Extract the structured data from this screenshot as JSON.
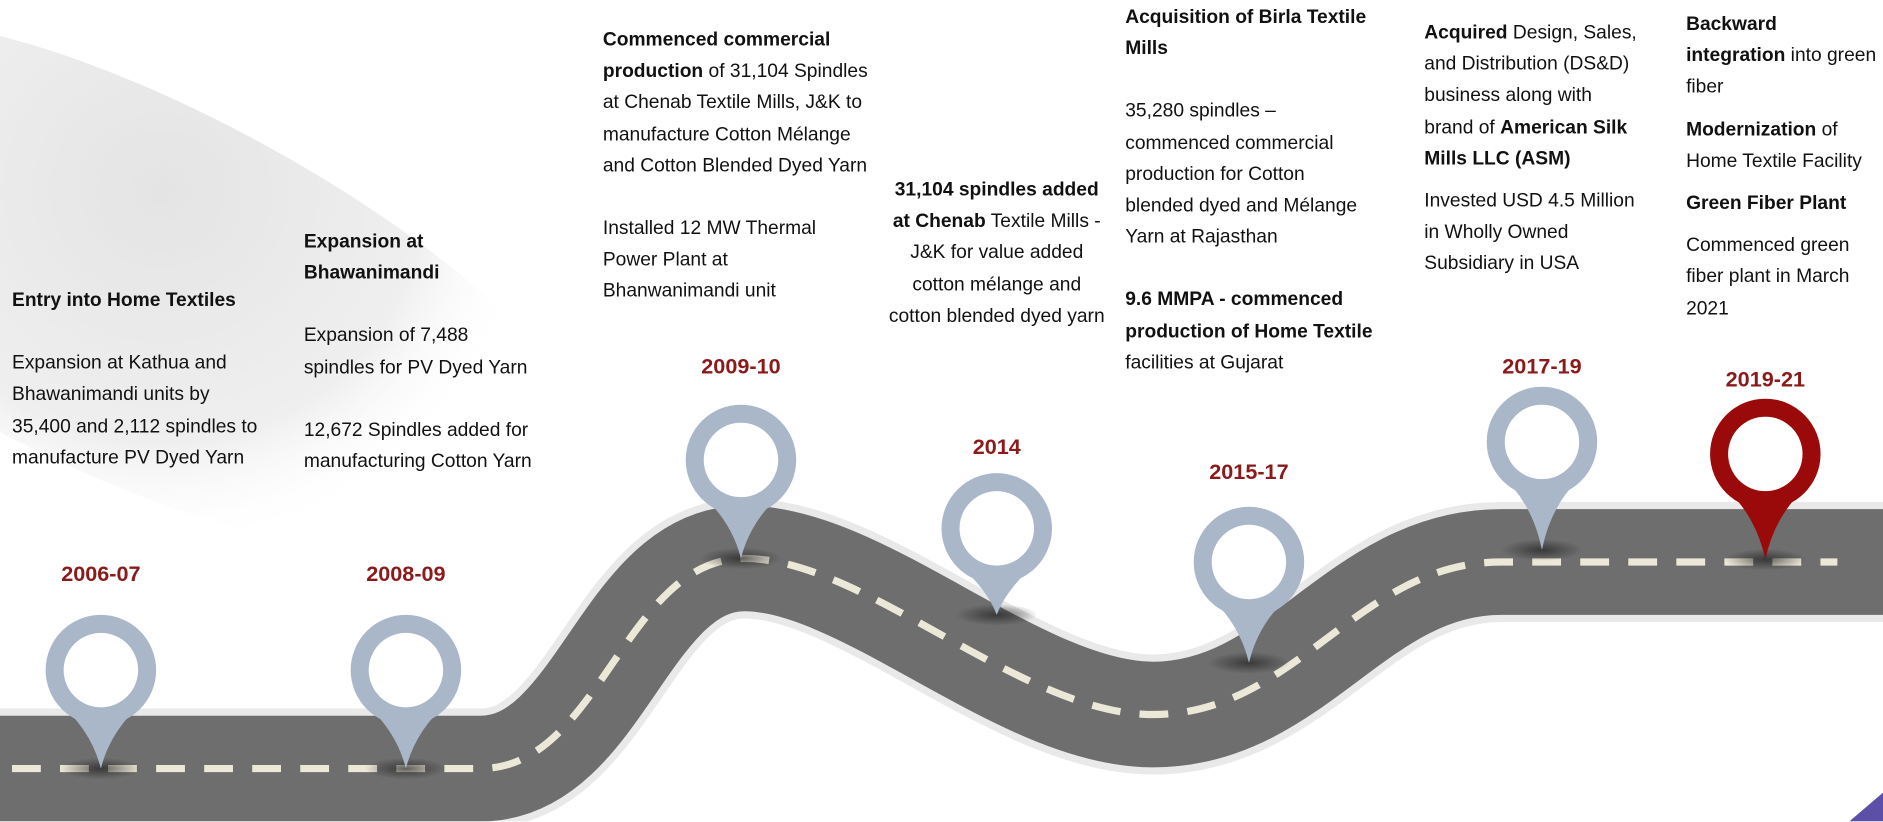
{
  "milestones": [
    {
      "year": "2006-07",
      "pin_color": "#a9b7c8",
      "paragraphs": [
        [
          {
            "text": "Entry into Home Textiles",
            "bold": true
          }
        ],
        [
          {
            "text": "Expansion at Kathua and Bhawanimandi units by 35,400 and 2,112 spindles to manufacture PV Dyed Yarn"
          }
        ]
      ]
    },
    {
      "year": "2008-09",
      "pin_color": "#a9b7c8",
      "paragraphs": [
        [
          {
            "text": "Expansion at Bhawanimandi",
            "bold": true
          }
        ],
        [
          {
            "text": "Expansion of 7,488 spindles for PV Dyed Yarn"
          }
        ],
        [
          {
            "text": "12,672 Spindles added for  manufacturing Cotton Yarn"
          }
        ]
      ]
    },
    {
      "year": "2009-10",
      "pin_color": "#a9b7c8",
      "paragraphs": [
        [
          {
            "text": "Commenced commercial production",
            "bold": true
          },
          {
            "text": " of 31,104 Spindles at Chenab Textile Mills, J&K to manufacture Cotton Mélange and Cotton Blended Dyed Yarn"
          }
        ],
        [
          {
            "text": "Installed 12 MW Thermal Power Plant at Bhanwanimandi unit"
          }
        ]
      ]
    },
    {
      "year": "2014",
      "pin_color": "#a9b7c8",
      "paragraphs": [
        [
          {
            "text": "31,104 spindles added at Chenab",
            "bold": true
          },
          {
            "text": " Textile Mills  - J&K for value added cotton mélange and cotton blended dyed yarn"
          }
        ]
      ]
    },
    {
      "year": "2015-17",
      "pin_color": "#a9b7c8",
      "paragraphs": [
        [
          {
            "text": "Acquisition of Birla Textile Mills",
            "bold": true
          }
        ],
        [
          {
            "text": "35,280 spindles – commenced commercial production for Cotton blended dyed and Mélange Yarn  at Rajasthan"
          }
        ],
        [
          {
            "text": "9.6 MMPA - commenced production of Home Textile",
            "bold": true
          },
          {
            "text": " facilities at Gujarat"
          }
        ]
      ]
    },
    {
      "year": "2017-19",
      "pin_color": "#a9b7c8",
      "paragraphs": [
        [
          {
            "text": "Acquired",
            "bold": true
          },
          {
            "text": " Design, Sales, and Distribution (DS&D) business along with brand of "
          },
          {
            "text": "American Silk Mills LLC (ASM)",
            "bold": true
          }
        ],
        [
          {
            "text": "Invested USD 4.5 Million in Wholly Owned Subsidiary in USA"
          }
        ]
      ]
    },
    {
      "year": "2019-21",
      "pin_color": "#9b0a0a",
      "paragraphs": [
        [
          {
            "text": "Backward integration",
            "bold": true
          },
          {
            "text": " into green fiber"
          }
        ],
        [
          {
            "text": "Modernization",
            "bold": true
          },
          {
            "text": " of Home Textile Facility"
          }
        ],
        [
          {
            "text": "Green Fiber Plant",
            "bold": true
          }
        ],
        [
          {
            "text": "Commenced green fiber plant in March 2021"
          }
        ]
      ]
    }
  ]
}
